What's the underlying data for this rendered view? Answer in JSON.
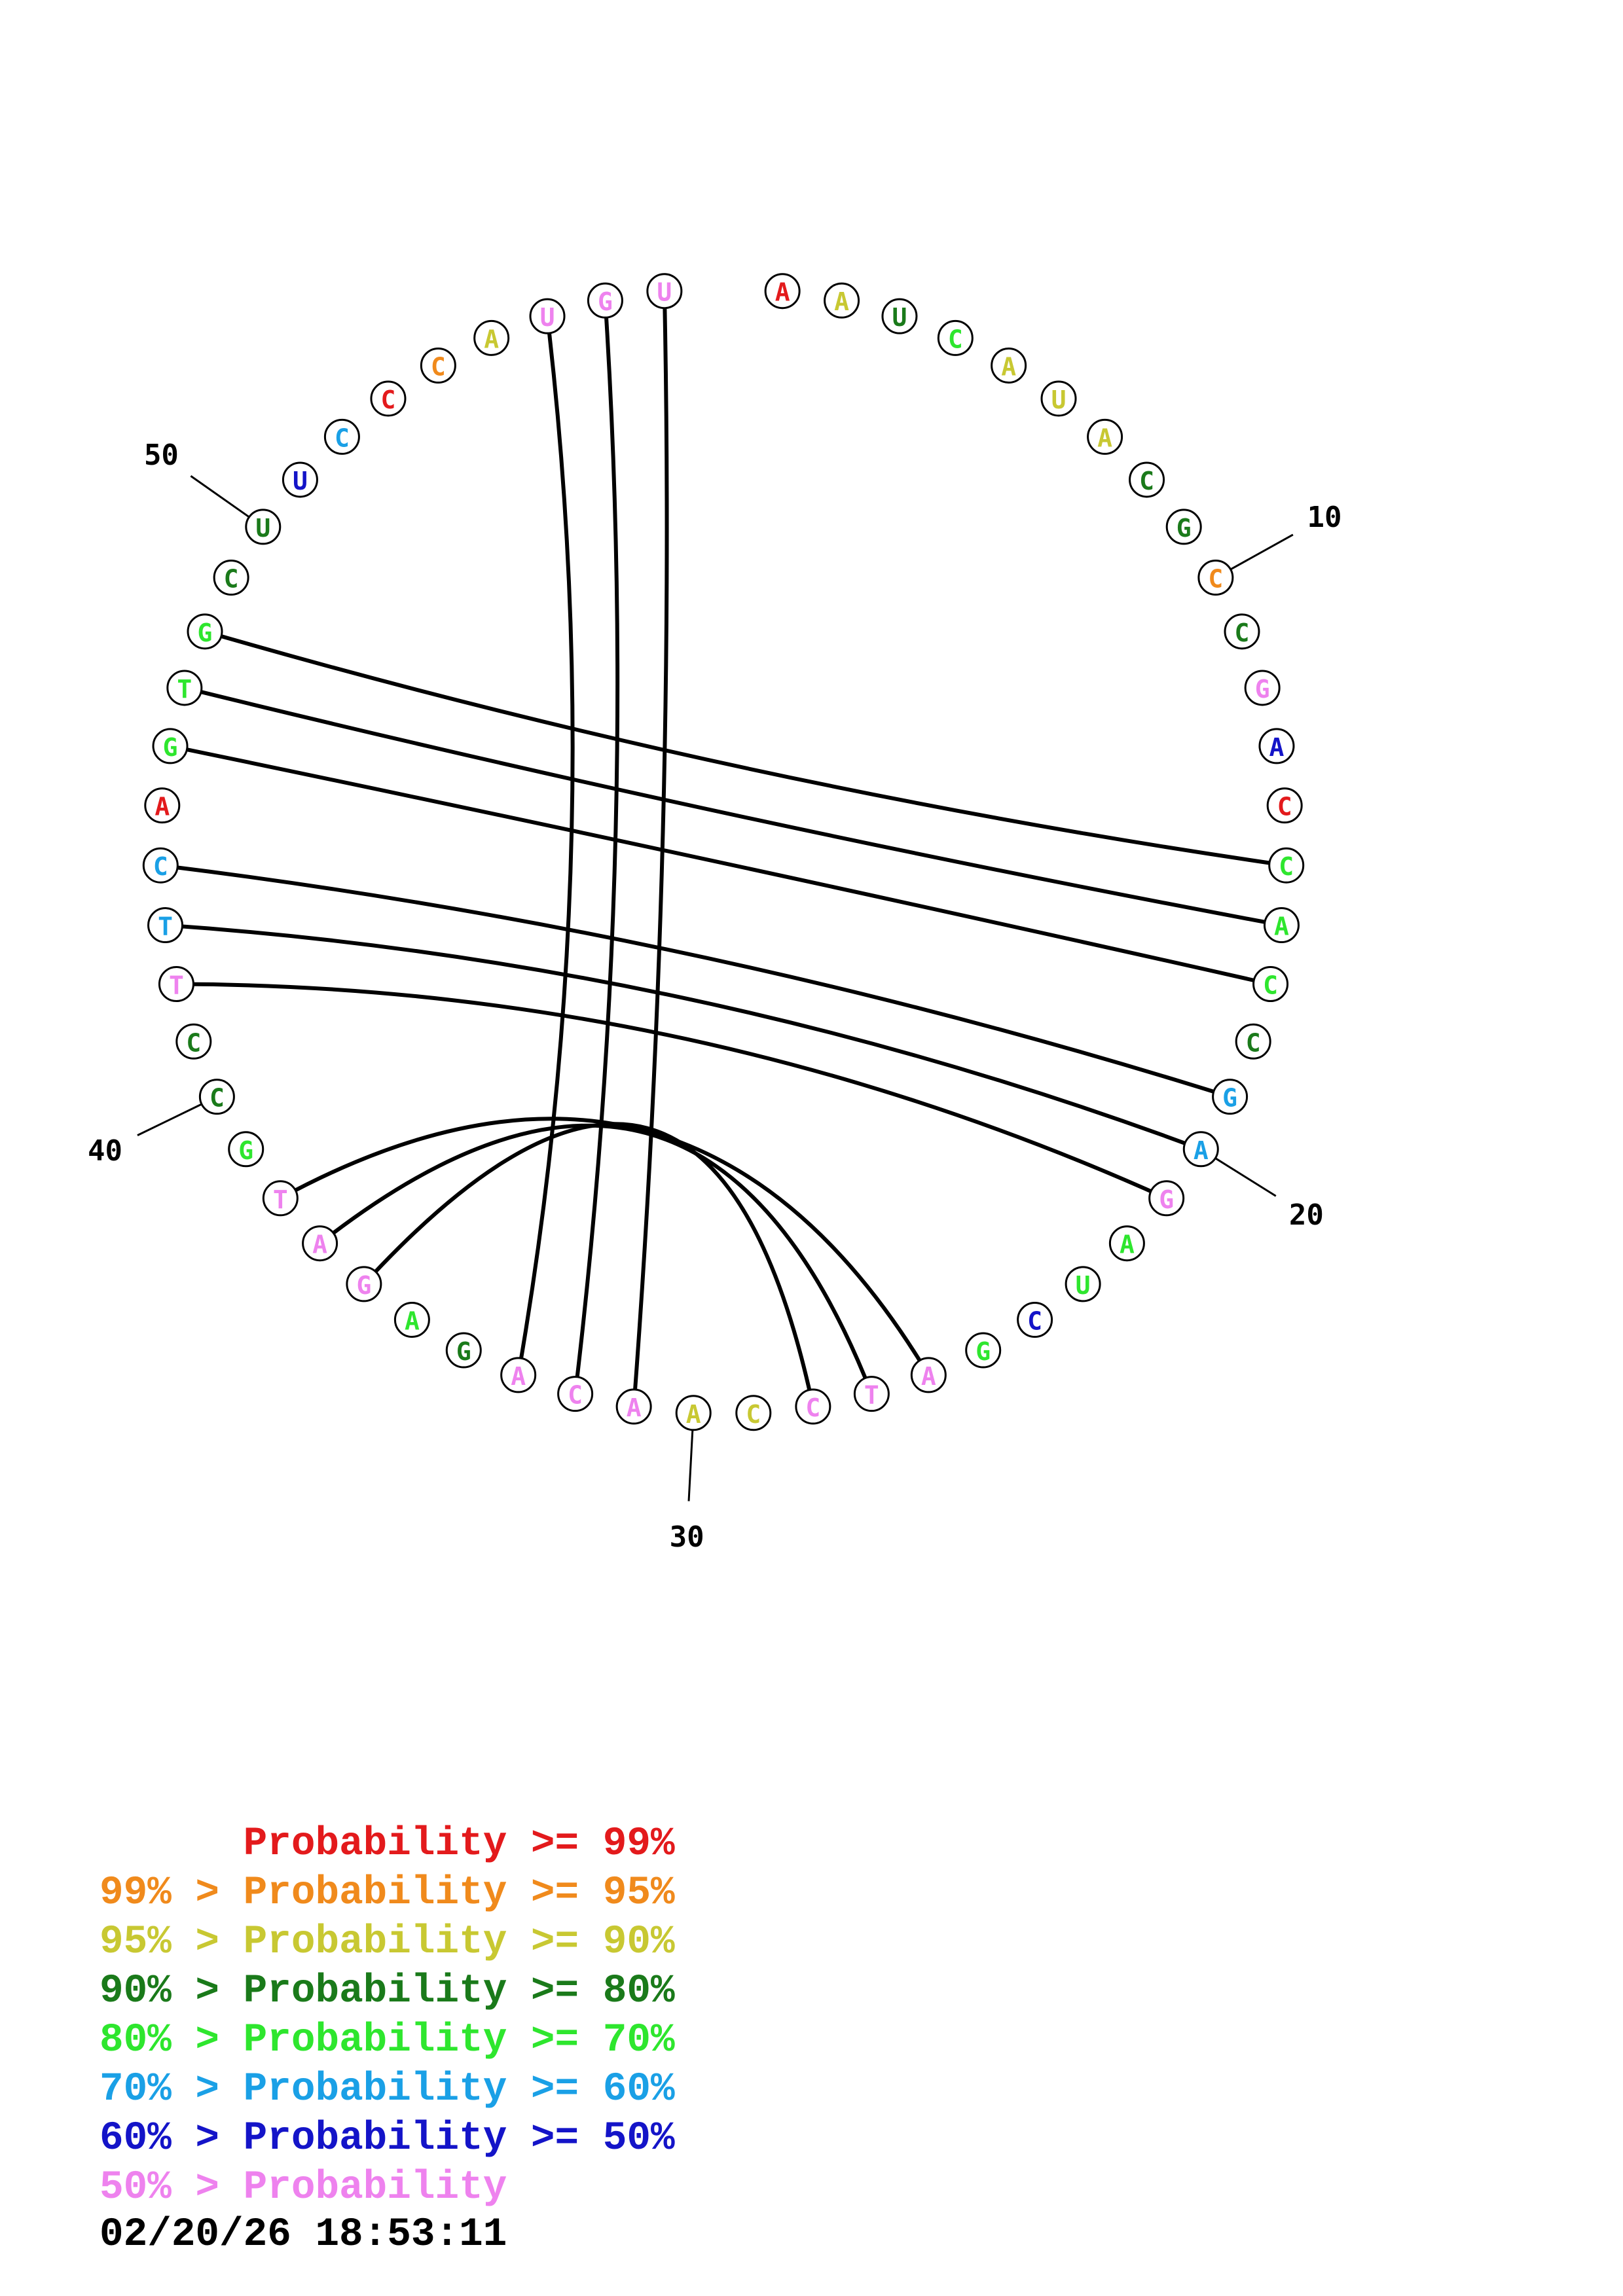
{
  "colors": {
    "red": "#e31a1c",
    "orange": "#f08a1c",
    "yellow": "#c8c832",
    "dkgreen": "#1a7a1a",
    "green": "#2ee62e",
    "cyan": "#1aa0e6",
    "blue": "#1414c8",
    "pink": "#ee82ee"
  },
  "sequence": [
    {
      "n": 1,
      "base": "A",
      "color": "red"
    },
    {
      "n": 2,
      "base": "A",
      "color": "yellow"
    },
    {
      "n": 3,
      "base": "U",
      "color": "dkgreen"
    },
    {
      "n": 4,
      "base": "C",
      "color": "green"
    },
    {
      "n": 5,
      "base": "A",
      "color": "yellow"
    },
    {
      "n": 6,
      "base": "U",
      "color": "yellow"
    },
    {
      "n": 7,
      "base": "A",
      "color": "yellow"
    },
    {
      "n": 8,
      "base": "C",
      "color": "dkgreen"
    },
    {
      "n": 9,
      "base": "G",
      "color": "dkgreen"
    },
    {
      "n": 10,
      "base": "C",
      "color": "orange"
    },
    {
      "n": 11,
      "base": "C",
      "color": "dkgreen"
    },
    {
      "n": 12,
      "base": "G",
      "color": "pink"
    },
    {
      "n": 13,
      "base": "A",
      "color": "blue"
    },
    {
      "n": 14,
      "base": "C",
      "color": "red"
    },
    {
      "n": 15,
      "base": "C",
      "color": "green"
    },
    {
      "n": 16,
      "base": "A",
      "color": "green"
    },
    {
      "n": 17,
      "base": "C",
      "color": "green"
    },
    {
      "n": 18,
      "base": "C",
      "color": "dkgreen"
    },
    {
      "n": 19,
      "base": "G",
      "color": "cyan"
    },
    {
      "n": 20,
      "base": "A",
      "color": "cyan"
    },
    {
      "n": 21,
      "base": "G",
      "color": "pink"
    },
    {
      "n": 22,
      "base": "A",
      "color": "green"
    },
    {
      "n": 23,
      "base": "U",
      "color": "green"
    },
    {
      "n": 24,
      "base": "C",
      "color": "blue"
    },
    {
      "n": 25,
      "base": "G",
      "color": "green"
    },
    {
      "n": 26,
      "base": "A",
      "color": "pink"
    },
    {
      "n": 27,
      "base": "T",
      "color": "pink"
    },
    {
      "n": 28,
      "base": "C",
      "color": "pink"
    },
    {
      "n": 29,
      "base": "C",
      "color": "yellow"
    },
    {
      "n": 30,
      "base": "A",
      "color": "yellow"
    },
    {
      "n": 31,
      "base": "A",
      "color": "pink"
    },
    {
      "n": 32,
      "base": "C",
      "color": "pink"
    },
    {
      "n": 33,
      "base": "A",
      "color": "pink"
    },
    {
      "n": 34,
      "base": "G",
      "color": "dkgreen"
    },
    {
      "n": 35,
      "base": "A",
      "color": "green"
    },
    {
      "n": 36,
      "base": "G",
      "color": "pink"
    },
    {
      "n": 37,
      "base": "A",
      "color": "pink"
    },
    {
      "n": 38,
      "base": "T",
      "color": "pink"
    },
    {
      "n": 39,
      "base": "G",
      "color": "green"
    },
    {
      "n": 40,
      "base": "C",
      "color": "dkgreen"
    },
    {
      "n": 41,
      "base": "C",
      "color": "dkgreen"
    },
    {
      "n": 42,
      "base": "T",
      "color": "pink"
    },
    {
      "n": 43,
      "base": "T",
      "color": "cyan"
    },
    {
      "n": 44,
      "base": "C",
      "color": "cyan"
    },
    {
      "n": 45,
      "base": "A",
      "color": "red"
    },
    {
      "n": 46,
      "base": "G",
      "color": "green"
    },
    {
      "n": 47,
      "base": "T",
      "color": "green"
    },
    {
      "n": 48,
      "base": "G",
      "color": "green"
    },
    {
      "n": 49,
      "base": "C",
      "color": "dkgreen"
    },
    {
      "n": 50,
      "base": "U",
      "color": "dkgreen"
    },
    {
      "n": 51,
      "base": "U",
      "color": "blue"
    },
    {
      "n": 52,
      "base": "C",
      "color": "cyan"
    },
    {
      "n": 53,
      "base": "C",
      "color": "red"
    },
    {
      "n": 54,
      "base": "C",
      "color": "orange"
    },
    {
      "n": 55,
      "base": "A",
      "color": "yellow"
    },
    {
      "n": 56,
      "base": "U",
      "color": "pink"
    },
    {
      "n": 57,
      "base": "G",
      "color": "pink"
    },
    {
      "n": 58,
      "base": "U",
      "color": "pink"
    }
  ],
  "pairs": [
    [
      15,
      48
    ],
    [
      16,
      47
    ],
    [
      17,
      46
    ],
    [
      19,
      44
    ],
    [
      20,
      43
    ],
    [
      21,
      42
    ],
    [
      26,
      38
    ],
    [
      27,
      37
    ],
    [
      28,
      36
    ],
    [
      31,
      58
    ],
    [
      32,
      57
    ],
    [
      33,
      56
    ]
  ],
  "tick_labels": [
    {
      "n": 10,
      "text": "10"
    },
    {
      "n": 20,
      "text": "20"
    },
    {
      "n": 30,
      "text": "30"
    },
    {
      "n": 40,
      "text": "40"
    },
    {
      "n": 50,
      "text": "50"
    }
  ],
  "legend": [
    {
      "prefix": "   ",
      "text": "Probability >= 99%",
      "color": "red"
    },
    {
      "prefix": "99% > ",
      "text": "Probability >= 95%",
      "color": "orange"
    },
    {
      "prefix": "95% > ",
      "text": "Probability >= 90%",
      "color": "yellow"
    },
    {
      "prefix": "90% > ",
      "text": "Probability >= 80%",
      "color": "dkgreen"
    },
    {
      "prefix": "80% > ",
      "text": "Probability >= 70%",
      "color": "green"
    },
    {
      "prefix": "70% > ",
      "text": "Probability >= 60%",
      "color": "cyan"
    },
    {
      "prefix": "60% > ",
      "text": "Probability >= 50%",
      "color": "blue"
    },
    {
      "prefix": "50% > ",
      "text": "Probability",
      "color": "pink"
    }
  ],
  "timestamp": "02/20/26 18:53:11"
}
